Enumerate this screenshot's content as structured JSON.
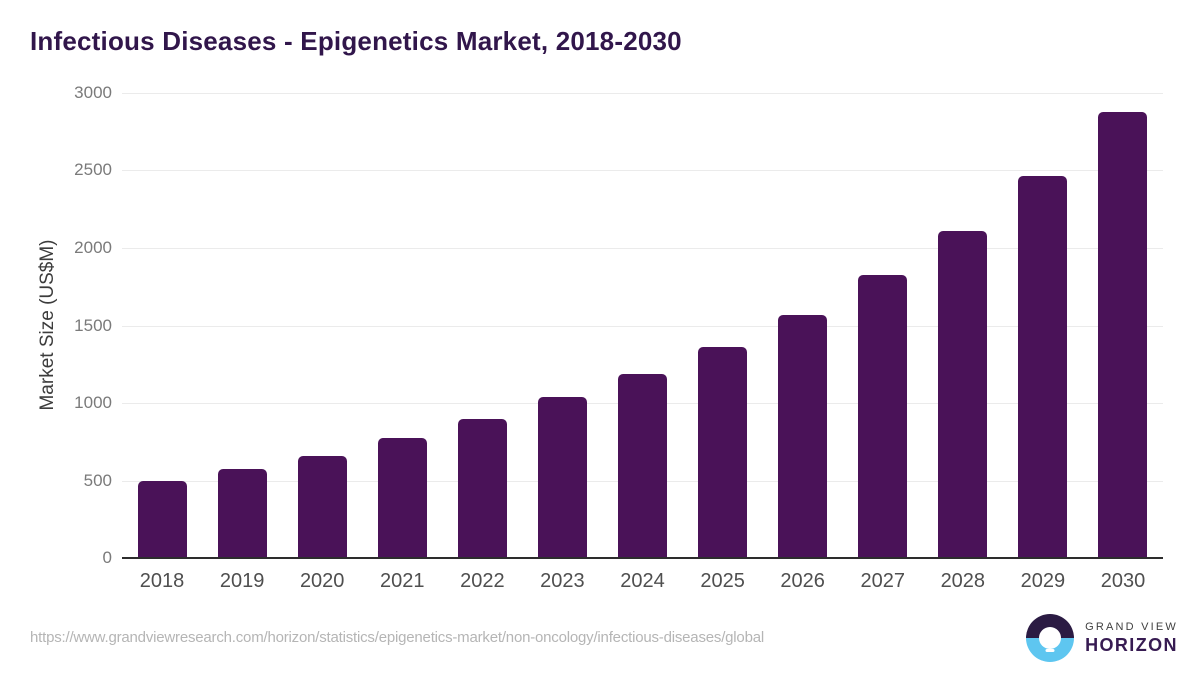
{
  "title": "Infectious Diseases - Epigenetics Market, 2018-2030",
  "chart_data": {
    "type": "bar",
    "title": "Infectious Diseases - Epigenetics Market, 2018-2030",
    "categories": [
      "2018",
      "2019",
      "2020",
      "2021",
      "2022",
      "2023",
      "2024",
      "2025",
      "2026",
      "2027",
      "2028",
      "2029",
      "2030"
    ],
    "values": [
      500,
      575,
      655,
      775,
      900,
      1040,
      1185,
      1360,
      1570,
      1825,
      2110,
      2465,
      2880
    ],
    "xlabel": "",
    "ylabel": "Market Size (US$M)",
    "ylim": [
      0,
      3000
    ],
    "yticks": [
      0,
      500,
      1000,
      1500,
      2000,
      2500,
      3000
    ],
    "grid": "horizontal",
    "legend": "none"
  },
  "colors": {
    "bar": "#4a1258",
    "title_text": "#31164b",
    "axis_line": "#2d2d2d",
    "gridline": "#ebebeb",
    "y_tick_text": "#7a7a7a",
    "x_tick_text": "#4f4f4f",
    "url_text": "#b5b5b5",
    "logo_circle_top": "#2b1b43",
    "logo_circle_bottom": "#5ec6f0",
    "logo_brand_top_text": "#3f3f3f",
    "logo_brand_bottom_text": "#371b52"
  },
  "footer": {
    "source_url": "https://www.grandviewresearch.com/horizon/statistics/epigenetics-market/non-oncology/infectious-diseases/global",
    "logo": {
      "top": "GRAND VIEW",
      "bottom": "HORIZON"
    }
  }
}
